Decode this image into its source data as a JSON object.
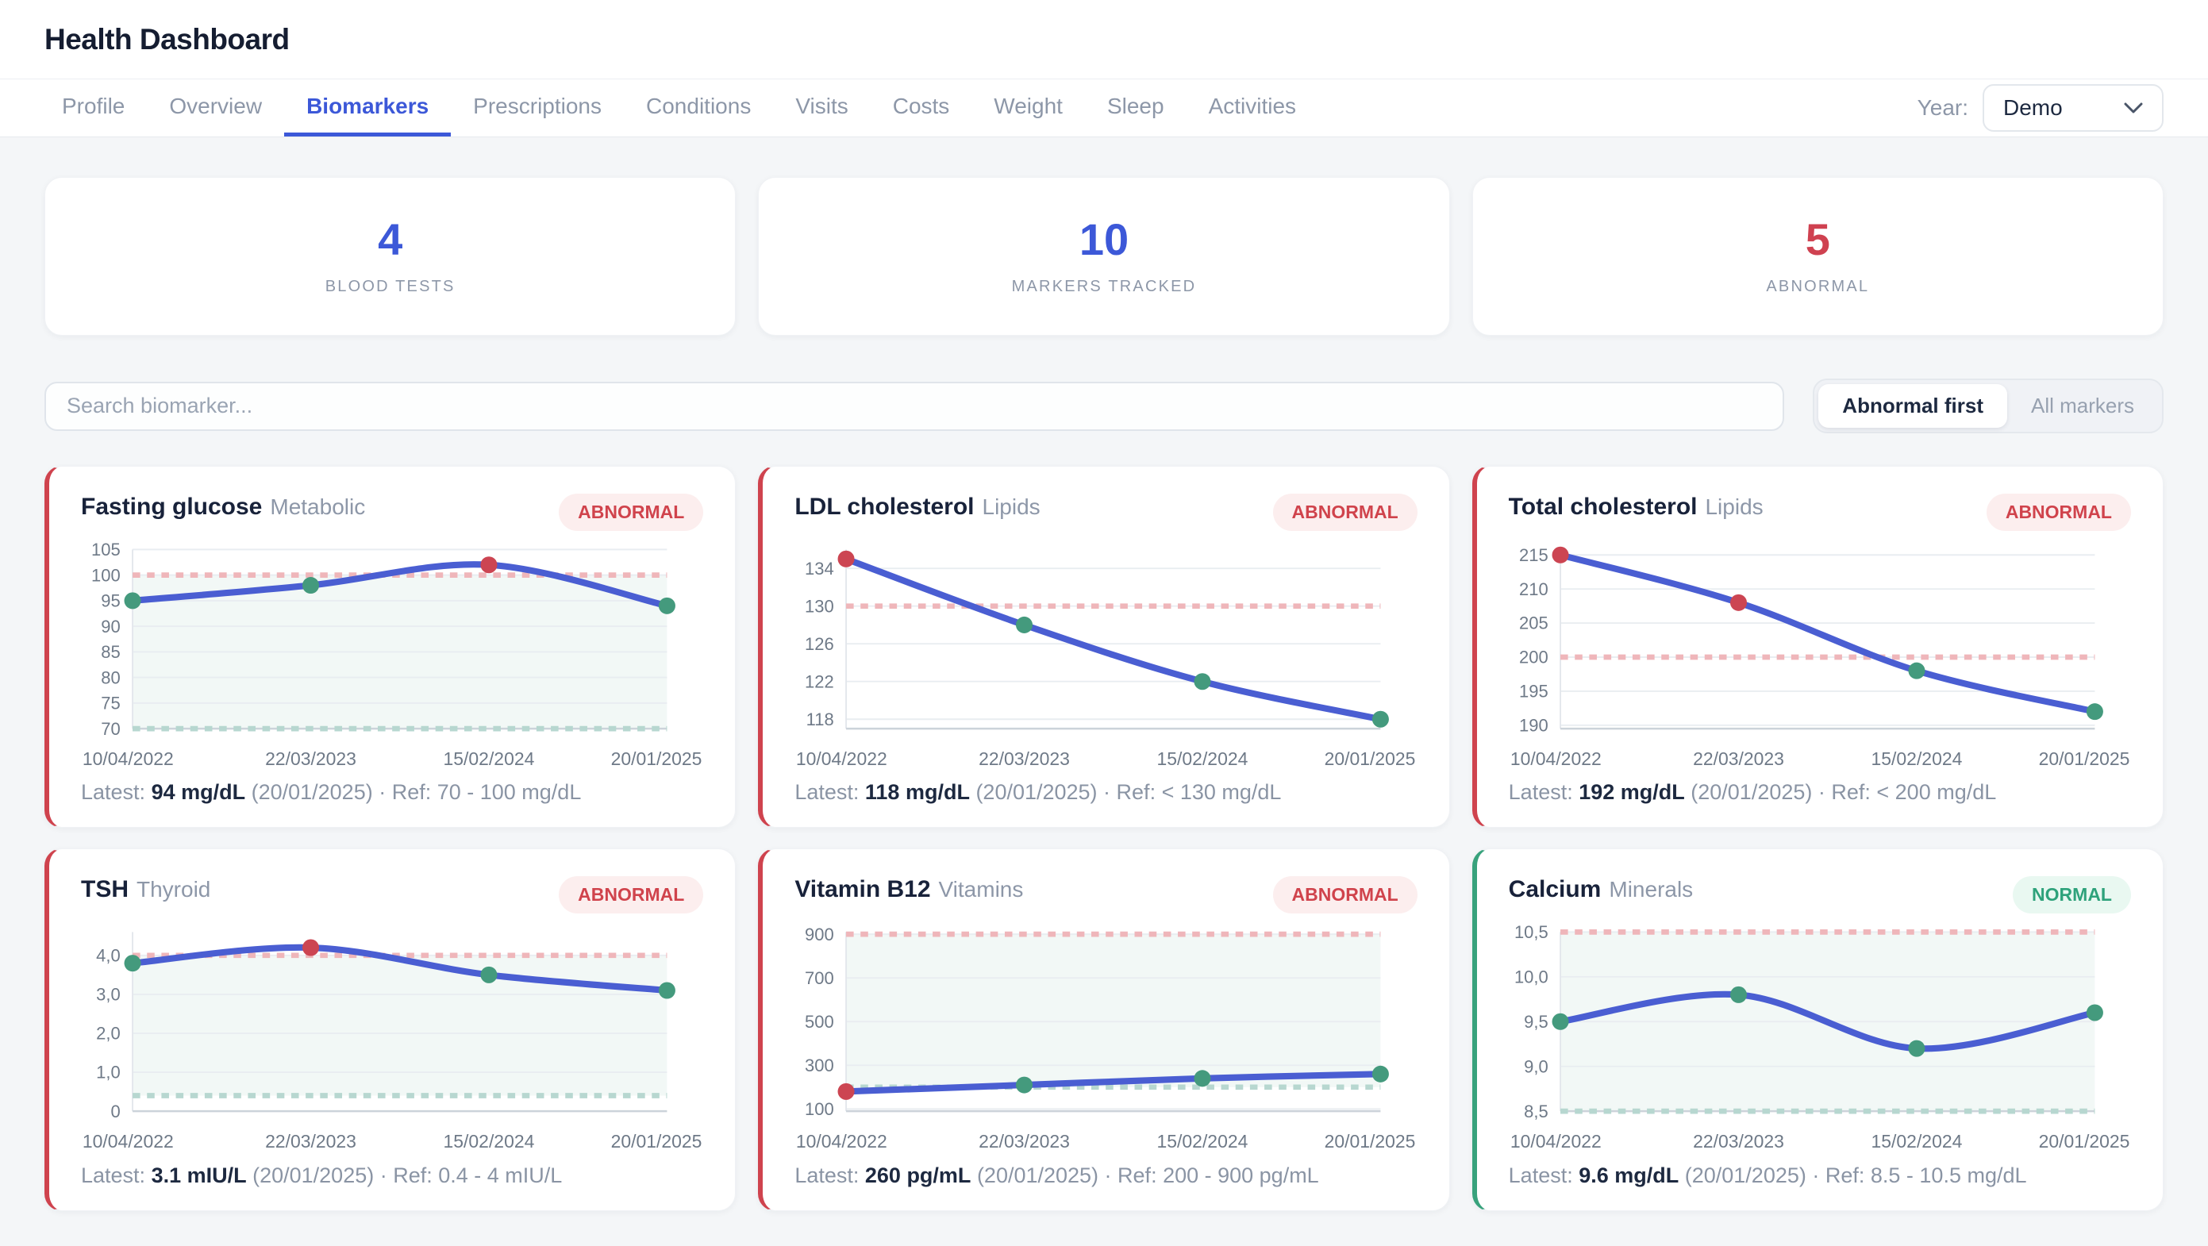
{
  "header": {
    "title": "Health Dashboard"
  },
  "nav": {
    "tabs": [
      {
        "label": "Profile",
        "active": false
      },
      {
        "label": "Overview",
        "active": false
      },
      {
        "label": "Biomarkers",
        "active": true
      },
      {
        "label": "Prescriptions",
        "active": false
      },
      {
        "label": "Conditions",
        "active": false
      },
      {
        "label": "Visits",
        "active": false
      },
      {
        "label": "Costs",
        "active": false
      },
      {
        "label": "Weight",
        "active": false
      },
      {
        "label": "Sleep",
        "active": false
      },
      {
        "label": "Activities",
        "active": false
      }
    ],
    "year_label": "Year:",
    "year_value": "Demo"
  },
  "stats": [
    {
      "value": "4",
      "label": "BLOOD TESTS",
      "color": "#3c58d8"
    },
    {
      "value": "10",
      "label": "MARKERS TRACKED",
      "color": "#3c58d8"
    },
    {
      "value": "5",
      "label": "ABNORMAL",
      "color": "#cf4150"
    }
  ],
  "search": {
    "placeholder": "Search biomarker..."
  },
  "filter": {
    "options": [
      {
        "label": "Abnormal first",
        "active": true
      },
      {
        "label": "All markers",
        "active": false
      }
    ]
  },
  "colors": {
    "accent_blue": "#3c58d8",
    "accent_red": "#cf4150",
    "accent_green": "#34a07a",
    "line": "#4a5ed2",
    "point_normal": "#449a7d",
    "point_abnormal": "#cc4552",
    "ref_high_dash": "#efb6ba",
    "ref_low_dash": "#b7d7d0",
    "band_fill": "rgba(70,160,122,0.07)",
    "grid": "#e9edf1",
    "axis_left": "#e3e7ec",
    "axis_bottom": "#ccd3da",
    "tick_text": "#6e7987"
  },
  "chart_data": [
    {
      "type": "line",
      "title": "Fasting glucose",
      "category": "Metabolic",
      "status": "ABNORMAL",
      "x": [
        "10/04/2022",
        "22/03/2023",
        "15/02/2024",
        "20/01/2025"
      ],
      "values": [
        95,
        98,
        102,
        94
      ],
      "point_status": [
        "normal",
        "normal",
        "abnormal",
        "normal"
      ],
      "yticks": [
        105,
        100,
        95,
        90,
        85,
        80,
        75,
        70
      ],
      "ytick_labels": [
        "105",
        "100",
        "95",
        "90",
        "85",
        "80",
        "75",
        "70"
      ],
      "ylim": [
        70,
        105
      ],
      "ref_high": 100,
      "ref_low": 70,
      "band": true,
      "footer": {
        "prefix": "Latest: ",
        "value": "94 mg/dL",
        "rest": " (20/01/2025) · Ref: 70 - 100 mg/dL"
      }
    },
    {
      "type": "line",
      "title": "LDL cholesterol",
      "category": "Lipids",
      "status": "ABNORMAL",
      "x": [
        "10/04/2022",
        "22/03/2023",
        "15/02/2024",
        "20/01/2025"
      ],
      "values": [
        135,
        128,
        122,
        118
      ],
      "point_status": [
        "abnormal",
        "normal",
        "normal",
        "normal"
      ],
      "yticks": [
        134,
        130,
        126,
        122,
        118
      ],
      "ytick_labels": [
        "134",
        "130",
        "126",
        "122",
        "118"
      ],
      "ylim": [
        117,
        136
      ],
      "ref_high": 130,
      "ref_low": null,
      "band": false,
      "footer": {
        "prefix": "Latest: ",
        "value": "118 mg/dL",
        "rest": " (20/01/2025) · Ref: < 130 mg/dL"
      }
    },
    {
      "type": "line",
      "title": "Total cholesterol",
      "category": "Lipids",
      "status": "ABNORMAL",
      "x": [
        "10/04/2022",
        "22/03/2023",
        "15/02/2024",
        "20/01/2025"
      ],
      "values": [
        215,
        208,
        198,
        192
      ],
      "point_status": [
        "abnormal",
        "abnormal",
        "normal",
        "normal"
      ],
      "yticks": [
        215,
        210,
        205,
        200,
        195,
        190
      ],
      "ytick_labels": [
        "215",
        "210",
        "205",
        "200",
        "195",
        "190"
      ],
      "ylim": [
        189.5,
        215.8
      ],
      "ref_high": 200,
      "ref_low": null,
      "band": false,
      "footer": {
        "prefix": "Latest: ",
        "value": "192 mg/dL",
        "rest": " (20/01/2025) · Ref: < 200 mg/dL"
      }
    },
    {
      "type": "line",
      "title": "TSH",
      "category": "Thyroid",
      "status": "ABNORMAL",
      "x": [
        "10/04/2022",
        "22/03/2023",
        "15/02/2024",
        "20/01/2025"
      ],
      "values": [
        3.8,
        4.2,
        3.5,
        3.1
      ],
      "point_status": [
        "normal",
        "abnormal",
        "normal",
        "normal"
      ],
      "yticks": [
        4,
        3,
        2,
        1,
        0
      ],
      "ytick_labels": [
        "4,0",
        "3,0",
        "2,0",
        "1,0",
        "0"
      ],
      "ylim": [
        0,
        4.6
      ],
      "ref_high": 4,
      "ref_low": 0.4,
      "band": true,
      "footer": {
        "prefix": "Latest: ",
        "value": "3.1 mIU/L",
        "rest": " (20/01/2025) · Ref: 0.4 - 4 mIU/L"
      }
    },
    {
      "type": "line",
      "title": "Vitamin B12",
      "category": "Vitamins",
      "status": "ABNORMAL",
      "x": [
        "10/04/2022",
        "22/03/2023",
        "15/02/2024",
        "20/01/2025"
      ],
      "values": [
        180,
        210,
        240,
        260
      ],
      "point_status": [
        "abnormal",
        "normal",
        "normal",
        "normal"
      ],
      "yticks": [
        900,
        700,
        500,
        300,
        100
      ],
      "ytick_labels": [
        "900",
        "700",
        "500",
        "300",
        "100"
      ],
      "ylim": [
        90,
        910
      ],
      "ref_high": 900,
      "ref_low": 200,
      "band": true,
      "footer": {
        "prefix": "Latest: ",
        "value": "260 pg/mL",
        "rest": " (20/01/2025) · Ref: 200 - 900 pg/mL"
      }
    },
    {
      "type": "line",
      "title": "Calcium",
      "category": "Minerals",
      "status": "NORMAL",
      "x": [
        "10/04/2022",
        "22/03/2023",
        "15/02/2024",
        "20/01/2025"
      ],
      "values": [
        9.5,
        9.8,
        9.2,
        9.6
      ],
      "point_status": [
        "normal",
        "normal",
        "normal",
        "normal"
      ],
      "yticks": [
        10.5,
        10,
        9.5,
        9,
        8.5
      ],
      "ytick_labels": [
        "10,5",
        "10,0",
        "9,5",
        "9,0",
        "8,5"
      ],
      "ylim": [
        8.5,
        10.5
      ],
      "ref_high": 10.5,
      "ref_low": 8.5,
      "band": true,
      "footer": {
        "prefix": "Latest: ",
        "value": "9.6 mg/dL",
        "rest": " (20/01/2025) · Ref: 8.5 - 10.5 mg/dL"
      }
    }
  ]
}
